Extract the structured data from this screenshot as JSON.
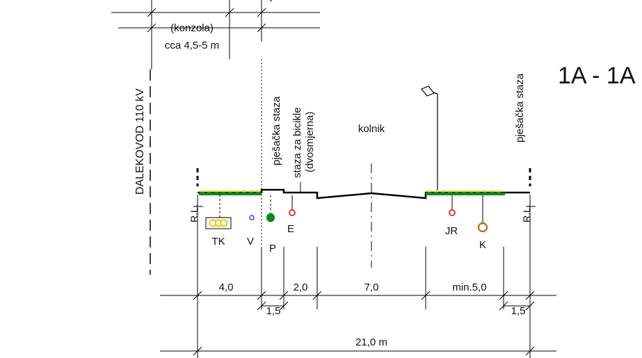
{
  "section_title": "1A - 1A",
  "labels": {
    "konzola": "(konzola)",
    "konzola_width": "cca 4,5-5 m",
    "dalekovod": "DALEKOVOD 110 kV",
    "pjesacka_left": "pješačka staza",
    "staza_bicikle": "staza za bicikle",
    "dvosmjerna": "(dvosmjerna)",
    "kolnik": "kolnik",
    "pjesacka_right": "pješačka staza",
    "rl_left": "R.L.",
    "rl_right": "R.L."
  },
  "utilities": [
    {
      "code": "TK",
      "color": "#f5c400"
    },
    {
      "code": "V",
      "color": "#1f4fd8"
    },
    {
      "code": "P",
      "color": "#0a8a1a"
    },
    {
      "code": "E",
      "color": "#e02020"
    },
    {
      "code": "JR",
      "color": "#e02020"
    },
    {
      "code": "K",
      "color": "#b86a10"
    }
  ],
  "dimensions": {
    "d1": "4,0",
    "d2": "1,5",
    "d3": "2,0",
    "d4": "7,0",
    "d5": "min.5,0",
    "d6": "1,5",
    "total": "21,0  m"
  },
  "colors": {
    "green_strip": "#0a8a1a",
    "hatch": "#c8f040",
    "line": "#000000"
  }
}
